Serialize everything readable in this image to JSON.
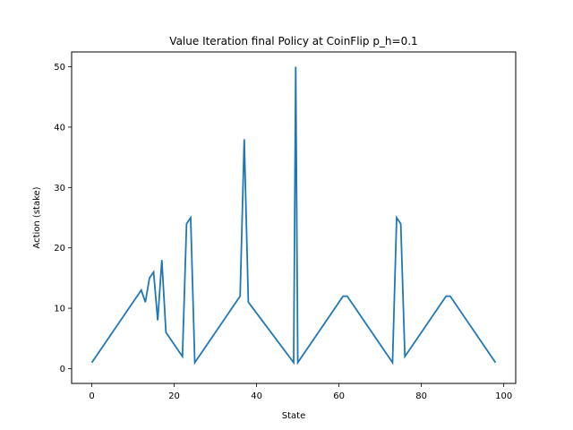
{
  "chart_data": {
    "type": "line",
    "title": "Value Iteration final Policy at CoinFlip p_h=0.1",
    "xlabel": "State",
    "ylabel": "Action (stake)",
    "xlim": [
      -4.9,
      102.9
    ],
    "ylim": [
      -2.45,
      52.45
    ],
    "xticks": [
      0,
      20,
      40,
      60,
      80,
      100
    ],
    "yticks": [
      0,
      10,
      20,
      30,
      40,
      50
    ],
    "grid": false,
    "line_color": "#1f77b4",
    "series": [
      {
        "x": [
          0,
          12,
          13,
          14,
          15,
          16,
          17,
          18,
          22,
          23,
          24,
          25,
          36,
          37,
          38,
          49,
          49.5,
          50,
          61,
          62,
          73,
          74,
          75,
          76,
          86,
          87,
          98
        ],
        "y": [
          1,
          13,
          11,
          15,
          16,
          8,
          18,
          6,
          2,
          24,
          25,
          1,
          12,
          38,
          11,
          1,
          50,
          1,
          12,
          12,
          1,
          25,
          24,
          2,
          12,
          12,
          1
        ]
      }
    ]
  }
}
